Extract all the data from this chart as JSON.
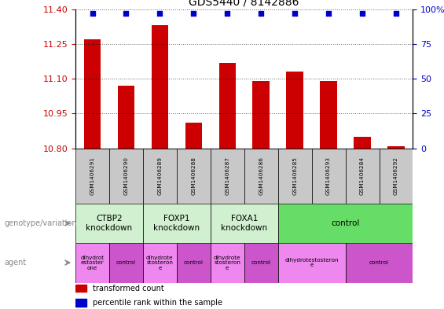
{
  "title": "GDS5440 / 8142886",
  "samples": [
    "GSM1406291",
    "GSM1406290",
    "GSM1406289",
    "GSM1406288",
    "GSM1406287",
    "GSM1406286",
    "GSM1406285",
    "GSM1406293",
    "GSM1406284",
    "GSM1406292"
  ],
  "transformed_count": [
    11.27,
    11.07,
    11.33,
    10.91,
    11.17,
    11.09,
    11.13,
    11.09,
    10.85,
    10.81
  ],
  "percentile": [
    97,
    97,
    97,
    97,
    97,
    97,
    97,
    97,
    97,
    97
  ],
  "ylim_left": [
    10.8,
    11.4
  ],
  "ylim_right": [
    0,
    100
  ],
  "yticks_left": [
    10.8,
    10.95,
    11.1,
    11.25,
    11.4
  ],
  "yticks_right": [
    0,
    25,
    50,
    75,
    100
  ],
  "bar_color": "#cc0000",
  "dot_color": "#0000cc",
  "genotype_groups": [
    {
      "label": "CTBP2\nknockdown",
      "start": 0,
      "end": 2,
      "color": "#d0f0d0"
    },
    {
      "label": "FOXP1\nknockdown",
      "start": 2,
      "end": 4,
      "color": "#d0f0d0"
    },
    {
      "label": "FOXA1\nknockdown",
      "start": 4,
      "end": 6,
      "color": "#d0f0d0"
    },
    {
      "label": "control",
      "start": 6,
      "end": 10,
      "color": "#66dd66"
    }
  ],
  "agent_groups": [
    {
      "label": "dihydrot\nestoster\none",
      "start": 0,
      "end": 1,
      "color": "#ee88ee"
    },
    {
      "label": "control",
      "start": 1,
      "end": 2,
      "color": "#cc55cc"
    },
    {
      "label": "dihydrote\nstosteron\ne",
      "start": 2,
      "end": 3,
      "color": "#ee88ee"
    },
    {
      "label": "control",
      "start": 3,
      "end": 4,
      "color": "#cc55cc"
    },
    {
      "label": "dihydrote\nstosteron\ne",
      "start": 4,
      "end": 5,
      "color": "#ee88ee"
    },
    {
      "label": "control",
      "start": 5,
      "end": 6,
      "color": "#cc55cc"
    },
    {
      "label": "dihydrotestosteron\ne",
      "start": 6,
      "end": 8,
      "color": "#ee88ee"
    },
    {
      "label": "control",
      "start": 8,
      "end": 10,
      "color": "#cc55cc"
    }
  ],
  "legend_bar_color": "#cc0000",
  "legend_dot_color": "#0000cc",
  "left_axis_color": "#cc0000",
  "right_axis_color": "#0000cc",
  "sample_box_color": "#c8c8c8",
  "background_color": "#ffffff"
}
